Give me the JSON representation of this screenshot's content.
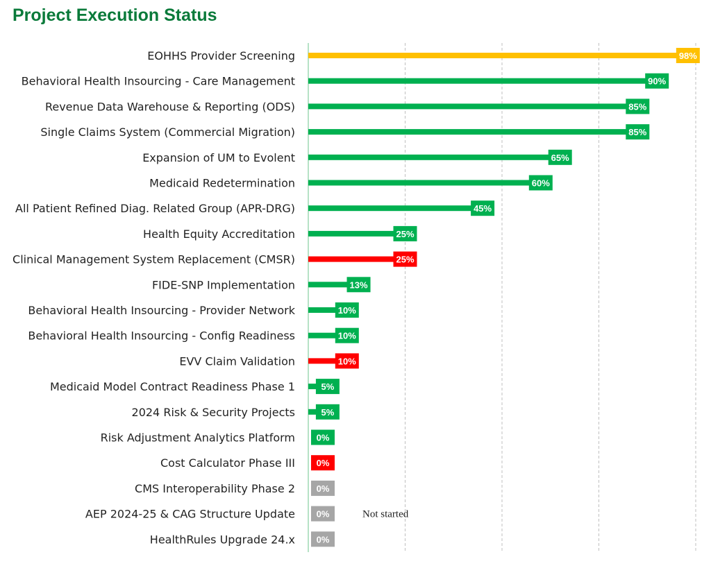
{
  "title": "Project Execution Status",
  "colors": {
    "green": "#00b050",
    "yellow": "#ffc000",
    "red": "#ff0000",
    "gray": "#a6a6a6",
    "axis": "#9ed9b4",
    "grid": "#bfbfbf",
    "title": "#0a7a3a"
  },
  "chart_data": {
    "type": "bar",
    "orientation": "horizontal",
    "title": "Project Execution Status",
    "xlim": [
      0,
      100
    ],
    "grid": "vertical dashed",
    "categories": [
      "EOHHS Provider Screening",
      "Behavioral Health Insourcing - Care Management",
      "Revenue Data Warehouse & Reporting (ODS)",
      "Single Claims System (Commercial Migration)",
      "Expansion of UM to Evolent",
      "Medicaid Redetermination",
      "All Patient Refined Diag. Related Group (APR-DRG)",
      "Health Equity Accreditation",
      "Clinical Management System Replacement (CMSR)",
      "FIDE-SNP Implementation",
      "Behavioral Health Insourcing - Provider Network",
      "Behavioral Health Insourcing - Config Readiness",
      "EVV Claim Validation",
      "Medicaid Model Contract Readiness Phase 1",
      "2024 Risk & Security Projects",
      "Risk Adjustment Analytics Platform",
      "Cost Calculator Phase III",
      "CMS Interoperability Phase 2",
      "AEP 2024-25 & CAG Structure Update",
      "HealthRules Upgrade 24.x"
    ],
    "values": [
      98,
      90,
      85,
      85,
      65,
      60,
      45,
      25,
      25,
      13,
      10,
      10,
      10,
      5,
      5,
      0,
      0,
      0,
      0,
      0
    ],
    "labels": [
      "98%",
      "90%",
      "85%",
      "85%",
      "65%",
      "60%",
      "45%",
      "25%",
      "25%",
      "13%",
      "10%",
      "10%",
      "10%",
      "5%",
      "5%",
      "0%",
      "0%",
      "0%",
      "0%",
      "0%"
    ],
    "status": [
      "yellow",
      "green",
      "green",
      "green",
      "green",
      "green",
      "green",
      "green",
      "red",
      "green",
      "green",
      "green",
      "red",
      "green",
      "green",
      "green",
      "red",
      "gray",
      "gray",
      "gray"
    ],
    "annotations": [
      {
        "category": "AEP 2024-25 & CAG Structure Update",
        "text": "Not started"
      }
    ]
  }
}
